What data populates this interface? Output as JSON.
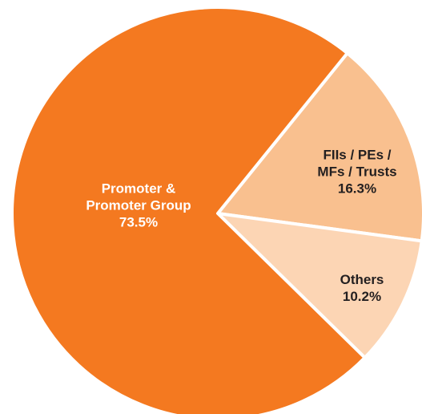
{
  "chart_data": {
    "type": "pie",
    "categories": [
      "Promoter & Promoter Group",
      "FIIs / PEs / MFs / Trusts",
      "Others"
    ],
    "values": [
      73.5,
      16.3,
      10.2
    ],
    "value_labels": [
      "73.5%",
      "16.3%",
      "10.2%"
    ],
    "colors": [
      "#f47920",
      "#f9c08f",
      "#fcd5b4"
    ],
    "label_colors": [
      "#ffffff",
      "#231f20",
      "#231f20"
    ]
  }
}
